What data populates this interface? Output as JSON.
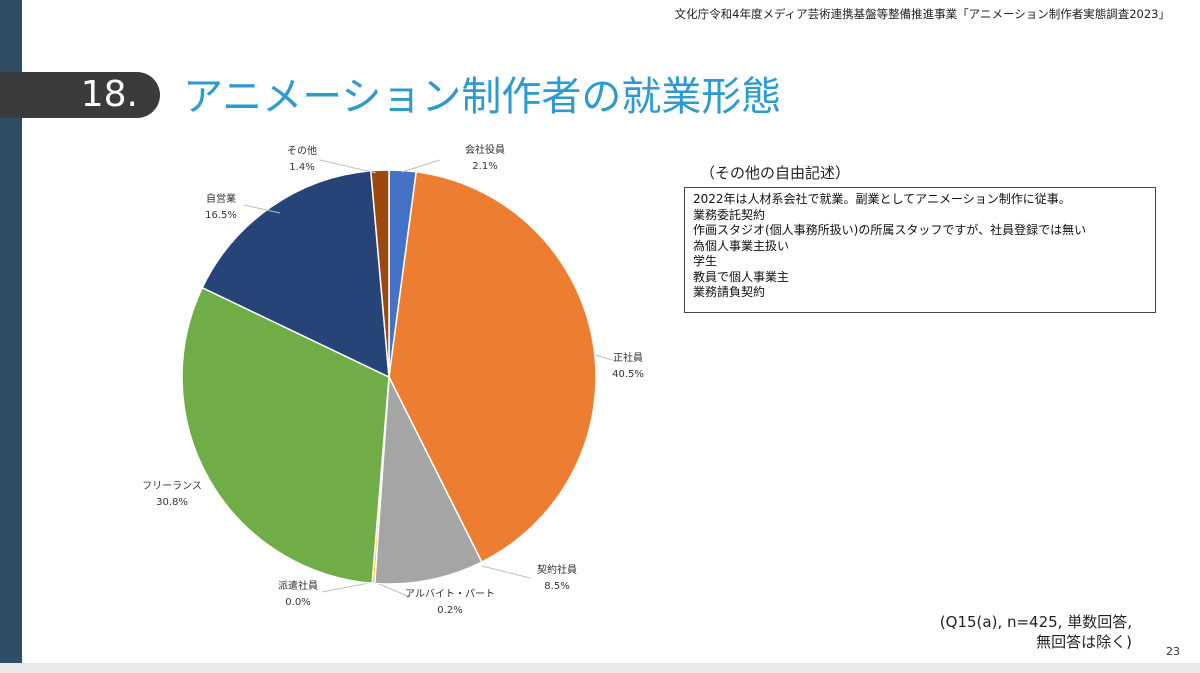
{
  "header": {
    "note": "文化庁令和4年度メディア芸術連携基盤等整備推進事業「アニメーション制作者実態調査2023」",
    "section_number": "18.",
    "title": "アニメーション制作者の就業形態"
  },
  "chart_data": {
    "type": "pie",
    "slices": [
      {
        "label": "会社役員",
        "value": 2.1,
        "display": "2.1%",
        "color": "#4472c4"
      },
      {
        "label": "正社員",
        "value": 40.5,
        "display": "40.5%",
        "color": "#ed7d31"
      },
      {
        "label": "契約社員",
        "value": 8.5,
        "display": "8.5%",
        "color": "#a5a5a5"
      },
      {
        "label": "アルバイト・パート",
        "value": 0.2,
        "display": "0.2%",
        "color": "#ffc000"
      },
      {
        "label": "派遣社員",
        "value": 0.0,
        "display": "0.0%",
        "color": "#5b9bd5"
      },
      {
        "label": "フリーランス",
        "value": 30.8,
        "display": "30.8%",
        "color": "#70ad47"
      },
      {
        "label": "自営業",
        "value": 16.5,
        "display": "16.5%",
        "color": "#264478"
      },
      {
        "label": "その他",
        "value": 1.4,
        "display": "1.4%",
        "color": "#9e480e"
      }
    ]
  },
  "free_text": {
    "title": "（その他の自由記述）",
    "lines": [
      "2022年は人材系会社で就業。副業としてアニメーション制作に従事。",
      "業務委託契約",
      "作画スタジオ(個人事務所扱い)の所属スタッフですが、社員登録では無い",
      "為個人事業主扱い",
      "学生",
      "教員で個人事業主",
      "業務請負契約"
    ]
  },
  "footnote": {
    "line1": "(Q15(a), n=425, 単数回答,",
    "line2": "無回答は除く)"
  },
  "page_number": "23"
}
